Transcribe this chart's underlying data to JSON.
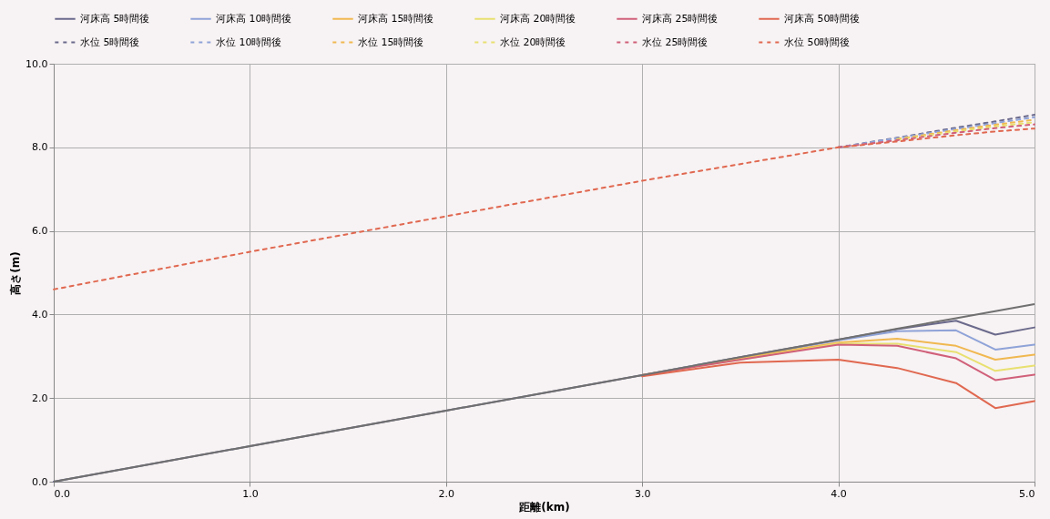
{
  "chart_data": {
    "type": "line",
    "xlabel": "距離(km)",
    "ylabel": "高さ(m)",
    "x": [
      0,
      1,
      2,
      3,
      3.5,
      4,
      4.3,
      4.6,
      4.8,
      5.0
    ],
    "xlim": [
      0,
      5
    ],
    "xticks": [
      {
        "value": 0,
        "label": "0.0"
      },
      {
        "value": 1,
        "label": "1.0"
      },
      {
        "value": 2,
        "label": "2.0"
      },
      {
        "value": 3,
        "label": "3.0"
      },
      {
        "value": 4,
        "label": "4.0"
      },
      {
        "value": 5,
        "label": "5.0"
      }
    ],
    "ylim": [
      0,
      10
    ],
    "yticks": [
      {
        "value": 0,
        "label": "0.0"
      },
      {
        "value": 2,
        "label": "2.0"
      },
      {
        "value": 4,
        "label": "4.0"
      },
      {
        "value": 6,
        "label": "6.0"
      },
      {
        "value": 8,
        "label": "8.0"
      },
      {
        "value": 10,
        "label": "10.0"
      }
    ],
    "grid": true,
    "legend": "top",
    "series": [
      {
        "color": "#707070",
        "line_style": "solid",
        "values": [
          0,
          0.85,
          1.7,
          2.55,
          2.98,
          3.4,
          3.66,
          3.91,
          4.08,
          4.25
        ]
      },
      {
        "name": "河床高 5時間後",
        "color": "#6b6a8c",
        "line_style": "solid",
        "values": [
          0,
          0.85,
          1.7,
          2.55,
          2.98,
          3.4,
          3.65,
          3.85,
          3.52,
          3.69
        ]
      },
      {
        "name": "河床高 10時間後",
        "color": "#8fa3d8",
        "line_style": "solid",
        "values": [
          null,
          null,
          null,
          2.55,
          2.97,
          3.38,
          3.6,
          3.62,
          3.16,
          3.28
        ]
      },
      {
        "name": "河床高 15時間後",
        "color": "#f0b850",
        "line_style": "solid",
        "values": [
          null,
          null,
          null,
          2.55,
          2.95,
          3.33,
          3.42,
          3.25,
          2.92,
          3.04
        ]
      },
      {
        "name": "河床高 20時間後",
        "color": "#e8e070",
        "line_style": "solid",
        "values": [
          null,
          null,
          null,
          2.55,
          2.92,
          3.3,
          3.3,
          3.1,
          2.65,
          2.78
        ]
      },
      {
        "name": "河床高 25時間後",
        "color": "#d0607a",
        "line_style": "solid",
        "values": [
          null,
          null,
          null,
          2.55,
          2.92,
          3.28,
          3.25,
          2.95,
          2.43,
          2.56
        ]
      },
      {
        "name": "河床高 50時間後",
        "color": "#e06850",
        "line_style": "solid",
        "values": [
          null,
          null,
          null,
          2.52,
          2.85,
          2.92,
          2.72,
          2.36,
          1.76,
          1.93
        ]
      },
      {
        "name": "水位 5時間後",
        "color": "#6b6a8c",
        "line_style": "dashed",
        "values": [
          null,
          null,
          null,
          null,
          null,
          8.0,
          8.23,
          8.47,
          8.62,
          8.78
        ]
      },
      {
        "name": "水位 10時間後",
        "color": "#8fa3d8",
        "line_style": "dashed",
        "values": [
          null,
          null,
          null,
          null,
          null,
          8.0,
          8.22,
          8.44,
          8.58,
          8.72
        ]
      },
      {
        "name": "水位 15時間後",
        "color": "#f0b850",
        "line_style": "dashed",
        "values": [
          null,
          null,
          null,
          null,
          null,
          null,
          8.2,
          8.41,
          8.54,
          8.66
        ]
      },
      {
        "name": "水位 20時間後",
        "color": "#e8e070",
        "line_style": "dashed",
        "values": [
          null,
          null,
          null,
          null,
          null,
          null,
          8.18,
          8.38,
          8.5,
          8.6
        ]
      },
      {
        "name": "水位 25時間後",
        "color": "#d0607a",
        "line_style": "dashed",
        "values": [
          null,
          null,
          null,
          null,
          null,
          8.0,
          8.17,
          8.35,
          8.46,
          8.55
        ]
      },
      {
        "name": "水位 50時間後",
        "color": "#e06850",
        "line_style": "dashed",
        "values": [
          4.6,
          5.5,
          6.35,
          7.2,
          7.6,
          8.0,
          8.14,
          8.29,
          8.38,
          8.45
        ]
      }
    ]
  }
}
